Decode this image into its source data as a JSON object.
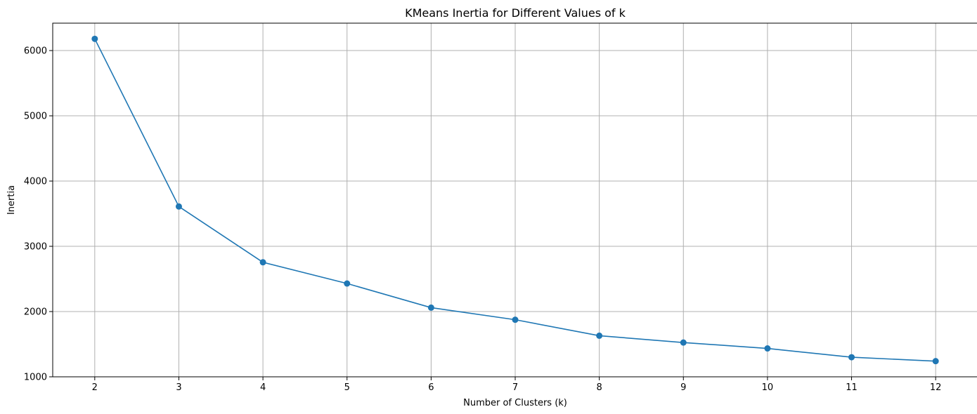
{
  "chart_data": {
    "type": "line",
    "title": "KMeans Inertia for Different Values of k",
    "xlabel": "Number of Clusters (k)",
    "ylabel": "Inertia",
    "xlim": [
      1.5,
      12.5
    ],
    "ylim": [
      1000,
      6420
    ],
    "x_ticks": [
      2,
      3,
      4,
      5,
      6,
      7,
      8,
      9,
      10,
      11,
      12
    ],
    "y_ticks": [
      1000,
      2000,
      3000,
      4000,
      5000,
      6000
    ],
    "grid": true,
    "marker": "circle",
    "series": [
      {
        "color": "#1f77b4",
        "x": [
          2,
          3,
          4,
          5,
          6,
          7,
          8,
          9,
          10,
          11,
          12
        ],
        "y": [
          6180,
          3610,
          2755,
          2430,
          2060,
          1875,
          1630,
          1525,
          1435,
          1300,
          1240
        ]
      }
    ]
  }
}
